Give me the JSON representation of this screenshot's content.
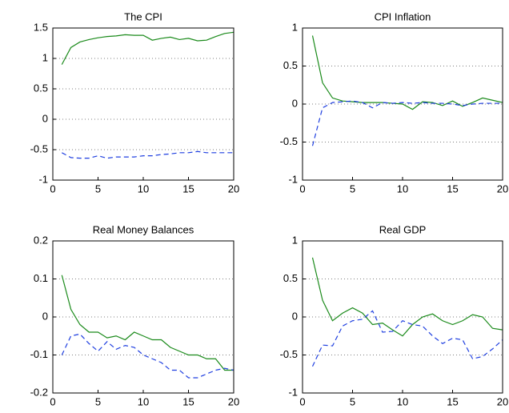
{
  "chart_data": [
    {
      "type": "line",
      "title": "The CPI",
      "x": [
        1,
        2,
        3,
        4,
        5,
        6,
        7,
        8,
        9,
        10,
        11,
        12,
        13,
        14,
        15,
        16,
        17,
        18,
        19,
        20
      ],
      "xlim": [
        0,
        20
      ],
      "xticks": [
        0,
        5,
        10,
        15,
        20
      ],
      "ylim": [
        -1,
        1.5
      ],
      "yticks": [
        -1,
        -0.5,
        0,
        0.5,
        1,
        1.5
      ],
      "grid": true,
      "series": [
        {
          "color": "#1a8a1a",
          "dashed": false,
          "values": [
            0.9,
            1.18,
            1.27,
            1.31,
            1.34,
            1.36,
            1.37,
            1.39,
            1.38,
            1.38,
            1.3,
            1.33,
            1.35,
            1.31,
            1.33,
            1.29,
            1.3,
            1.36,
            1.41,
            1.43
          ]
        },
        {
          "color": "#1f3fe0",
          "dashed": true,
          "values": [
            -0.55,
            -0.63,
            -0.64,
            -0.64,
            -0.6,
            -0.64,
            -0.62,
            -0.62,
            -0.62,
            -0.6,
            -0.6,
            -0.58,
            -0.57,
            -0.55,
            -0.55,
            -0.53,
            -0.55,
            -0.55,
            -0.55,
            -0.55
          ]
        }
      ]
    },
    {
      "type": "line",
      "title": "CPI Inflation",
      "x": [
        1,
        2,
        3,
        4,
        5,
        6,
        7,
        8,
        9,
        10,
        11,
        12,
        13,
        14,
        15,
        16,
        17,
        18,
        19,
        20
      ],
      "xlim": [
        0,
        20
      ],
      "xticks": [
        0,
        5,
        10,
        15,
        20
      ],
      "ylim": [
        -1,
        1
      ],
      "yticks": [
        -1,
        -0.5,
        0,
        0.5,
        1
      ],
      "grid": true,
      "series": [
        {
          "color": "#1a8a1a",
          "dashed": false,
          "values": [
            0.9,
            0.28,
            0.08,
            0.04,
            0.03,
            0.02,
            0.02,
            0.02,
            0.01,
            0.0,
            -0.07,
            0.03,
            0.02,
            -0.02,
            0.04,
            -0.03,
            0.02,
            0.08,
            0.05,
            0.02
          ]
        },
        {
          "color": "#1f3fe0",
          "dashed": true,
          "values": [
            -0.55,
            -0.05,
            0.02,
            0.03,
            0.04,
            0.02,
            -0.05,
            0.02,
            0.01,
            0.02,
            0.01,
            0.02,
            0.01,
            0.01,
            0.0,
            -0.02,
            0.0,
            0.01,
            0.01,
            0.01
          ]
        }
      ]
    },
    {
      "type": "line",
      "title": "Real Money Balances",
      "x": [
        1,
        2,
        3,
        4,
        5,
        6,
        7,
        8,
        9,
        10,
        11,
        12,
        13,
        14,
        15,
        16,
        17,
        18,
        19,
        20
      ],
      "xlim": [
        0,
        20
      ],
      "xticks": [
        0,
        5,
        10,
        15,
        20
      ],
      "ylim": [
        -0.2,
        0.2
      ],
      "yticks": [
        -0.2,
        -0.1,
        0,
        0.1,
        0.2
      ],
      "grid": true,
      "series": [
        {
          "color": "#1a8a1a",
          "dashed": false,
          "values": [
            0.11,
            0.02,
            -0.02,
            -0.04,
            -0.04,
            -0.055,
            -0.05,
            -0.06,
            -0.04,
            -0.05,
            -0.06,
            -0.06,
            -0.08,
            -0.09,
            -0.1,
            -0.1,
            -0.11,
            -0.11,
            -0.14,
            -0.14
          ]
        },
        {
          "color": "#1f3fe0",
          "dashed": true,
          "values": [
            -0.1,
            -0.05,
            -0.045,
            -0.07,
            -0.09,
            -0.065,
            -0.085,
            -0.075,
            -0.08,
            -0.1,
            -0.11,
            -0.12,
            -0.14,
            -0.14,
            -0.16,
            -0.16,
            -0.15,
            -0.14,
            -0.135,
            -0.14
          ]
        }
      ]
    },
    {
      "type": "line",
      "title": "Real GDP",
      "x": [
        1,
        2,
        3,
        4,
        5,
        6,
        7,
        8,
        9,
        10,
        11,
        12,
        13,
        14,
        15,
        16,
        17,
        18,
        19,
        20
      ],
      "xlim": [
        0,
        20
      ],
      "xticks": [
        0,
        5,
        10,
        15,
        20
      ],
      "ylim": [
        -1,
        1
      ],
      "yticks": [
        -1,
        -0.5,
        0,
        0.5,
        1
      ],
      "grid": true,
      "series": [
        {
          "color": "#1a8a1a",
          "dashed": false,
          "values": [
            0.78,
            0.22,
            -0.05,
            0.05,
            0.12,
            0.05,
            -0.1,
            -0.08,
            -0.17,
            -0.25,
            -0.1,
            0.0,
            0.04,
            -0.05,
            -0.1,
            -0.05,
            0.03,
            0.0,
            -0.15,
            -0.17
          ]
        },
        {
          "color": "#1f3fe0",
          "dashed": true,
          "values": [
            -0.65,
            -0.37,
            -0.38,
            -0.12,
            -0.05,
            -0.03,
            0.08,
            -0.2,
            -0.19,
            -0.05,
            -0.1,
            -0.12,
            -0.25,
            -0.35,
            -0.28,
            -0.3,
            -0.55,
            -0.52,
            -0.42,
            -0.3
          ]
        }
      ]
    }
  ]
}
